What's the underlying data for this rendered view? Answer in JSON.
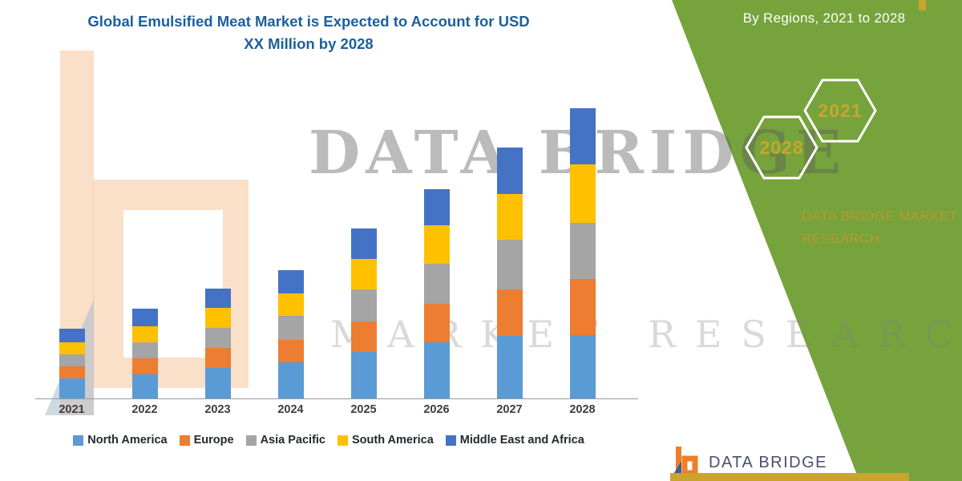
{
  "title_line1": "Global Emulsified Meat Market is Expected to Account for USD",
  "title_line2": "XX Million by 2028",
  "watermark": {
    "line1": "DATA BRIDGE",
    "line2": "MARKET RESEARCH"
  },
  "side_panel": {
    "heading": "By Regions, 2021 to 2028",
    "hexagons": [
      {
        "label": "2028"
      },
      {
        "label": "2021"
      }
    ],
    "brand_line1": "DATA BRIDGE MARKET",
    "brand_line2": "RESEARCH",
    "panel_color": "#76a33c",
    "accent_gold": "#c9a431"
  },
  "footer_logo": {
    "text": "DATA BRIDGE"
  },
  "chart_data": {
    "type": "bar",
    "stacked": true,
    "title": "Global Emulsified Meat Market is Expected to Account for USD XX Million by 2028",
    "xlabel": "",
    "ylabel": "",
    "value_note": "y-axis unlabeled in source (USD XX Million); values are relative estimates",
    "categories": [
      "2021",
      "2022",
      "2023",
      "2024",
      "2025",
      "2026",
      "2027",
      "2028"
    ],
    "series": [
      {
        "name": "North America",
        "color": "#5B9BD5",
        "values": [
          2.5,
          3.0,
          3.8,
          4.5,
          5.8,
          7.0,
          7.8,
          7.9
        ]
      },
      {
        "name": "Europe",
        "color": "#ED7D31",
        "values": [
          1.5,
          2.0,
          2.5,
          2.8,
          3.8,
          4.8,
          5.8,
          7.0
        ]
      },
      {
        "name": "Asia Pacific",
        "color": "#A5A5A5",
        "values": [
          1.5,
          2.0,
          2.5,
          3.0,
          4.0,
          5.0,
          6.2,
          7.0
        ]
      },
      {
        "name": "South America",
        "color": "#FFC000",
        "values": [
          1.5,
          2.0,
          2.5,
          2.8,
          3.8,
          4.8,
          5.7,
          7.3
        ]
      },
      {
        "name": "Middle East and Africa",
        "color": "#4472C4",
        "values": [
          1.7,
          2.2,
          2.4,
          2.9,
          3.8,
          4.5,
          5.8,
          7.0
        ]
      }
    ],
    "totals": [
      8.7,
      11.2,
      13.7,
      16.0,
      21.2,
      26.1,
      31.3,
      36.2
    ],
    "ylim": [
      0,
      36.5
    ],
    "legend_position": "bottom",
    "gridlines": false
  }
}
